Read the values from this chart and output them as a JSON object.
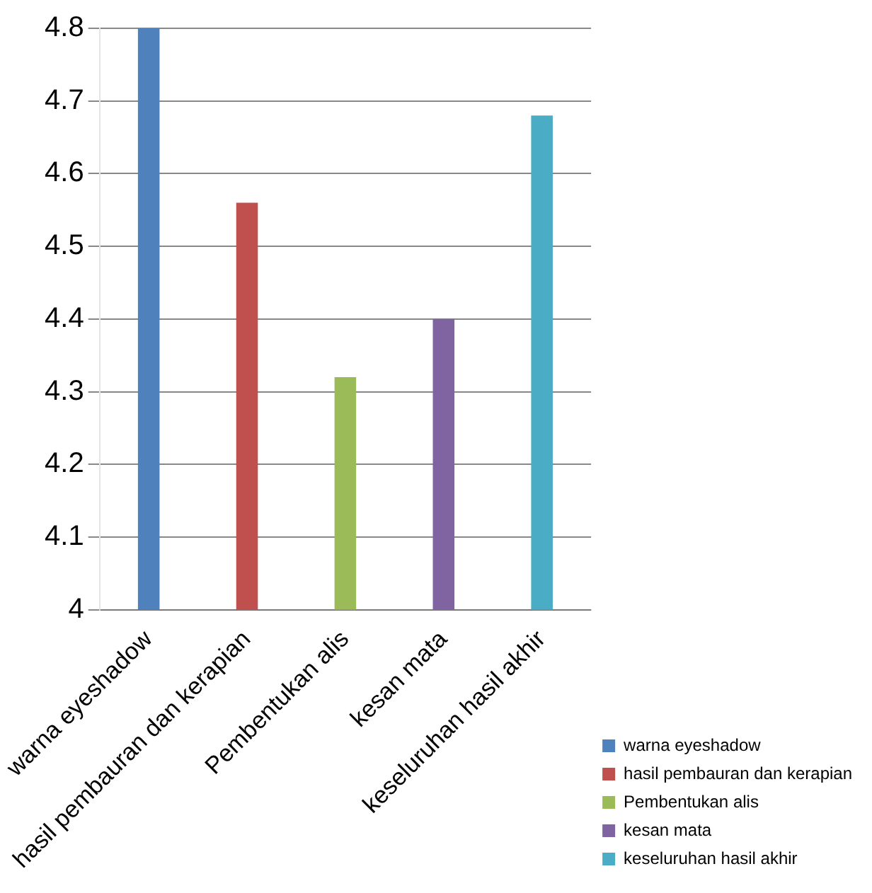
{
  "chart_data": {
    "type": "bar",
    "categories": [
      "warna eyeshadow",
      "hasil pembauran dan kerapian",
      "Pembentukan alis",
      "kesan mata",
      "keseluruhan hasil akhir"
    ],
    "series": [
      {
        "name": "warna eyeshadow",
        "color": "#4f81bd",
        "values": [
          4.8,
          null,
          null,
          null,
          null
        ]
      },
      {
        "name": "hasil pembauran dan kerapian",
        "color": "#c0504d",
        "values": [
          null,
          4.56,
          null,
          null,
          null
        ]
      },
      {
        "name": "Pembentukan alis",
        "color": "#9bbb59",
        "values": [
          null,
          null,
          4.32,
          null,
          null
        ]
      },
      {
        "name": "kesan mata",
        "color": "#8064a2",
        "values": [
          null,
          null,
          null,
          4.4,
          null
        ]
      },
      {
        "name": "keseluruhan hasil akhir",
        "color": "#4bacc6",
        "values": [
          null,
          null,
          null,
          null,
          4.68
        ]
      }
    ],
    "ylim": [
      4,
      4.8
    ],
    "yticks": [
      4,
      4.1,
      4.2,
      4.3,
      4.4,
      4.5,
      4.6,
      4.7,
      4.8
    ],
    "grid": "y",
    "legend": "bottom right"
  }
}
